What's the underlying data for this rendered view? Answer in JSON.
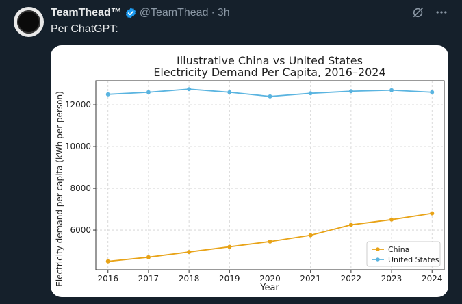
{
  "tweet": {
    "display_name": "TeamThead™",
    "handle": "@TeamThead",
    "separator": "·",
    "time": "3h",
    "text": "Per ChatGPT:"
  },
  "icons": {
    "verified": "verified-badge-icon",
    "grok": "grok-icon",
    "more": "more-icon"
  },
  "colors": {
    "background": "#15202b",
    "verified": "#1d9bf0",
    "china": "#e8a317",
    "united_states": "#5ab4e0"
  },
  "chart_data": {
    "type": "line",
    "title": "Illustrative China vs United States",
    "subtitle": "Electricity Demand Per Capita, 2016–2024",
    "xlabel": "Year",
    "ylabel": "Electricity demand per capita (kWh per person)",
    "x": [
      2016,
      2017,
      2018,
      2019,
      2020,
      2021,
      2022,
      2023,
      2024
    ],
    "x_ticks": [
      "2016",
      "2017",
      "2018",
      "2019",
      "2020",
      "2021",
      "2022",
      "2023",
      "2024"
    ],
    "y_ticks": [
      6000,
      8000,
      10000,
      12000
    ],
    "y_tick_labels": [
      "6000",
      "8000",
      "10000",
      "12000"
    ],
    "ylim": [
      4100,
      13150
    ],
    "xlim": [
      2015.7,
      2024.3
    ],
    "grid": true,
    "legend_position": "bottom-right",
    "series": [
      {
        "name": "China",
        "color": "#e8a317",
        "values": [
          4500,
          4700,
          4950,
          5200,
          5450,
          5750,
          6250,
          6500,
          6800
        ]
      },
      {
        "name": "United States",
        "color": "#5ab4e0",
        "values": [
          12500,
          12600,
          12750,
          12600,
          12400,
          12550,
          12650,
          12700,
          12600
        ]
      }
    ]
  }
}
